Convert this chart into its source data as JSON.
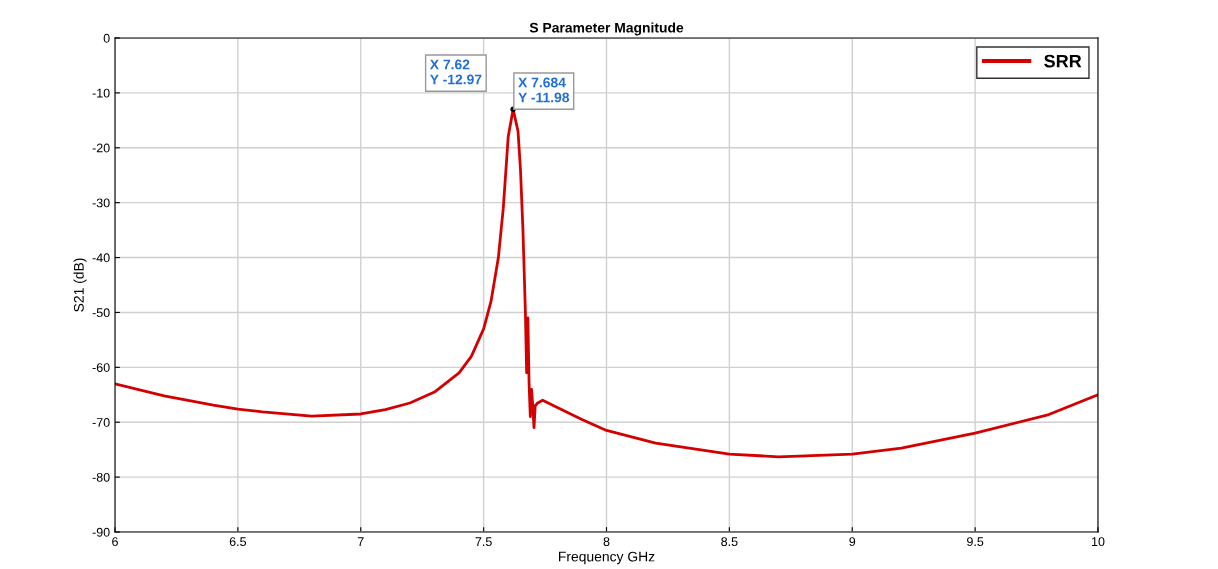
{
  "chart_data": {
    "type": "line",
    "title": "S Parameter Magnitude",
    "xlabel": "Frequency GHz",
    "ylabel": "S21 (dB)",
    "xlim": [
      6,
      10
    ],
    "xticks": [
      6,
      6.5,
      7,
      7.5,
      8,
      8.5,
      9,
      9.5,
      10
    ],
    "ylim": [
      -90,
      0
    ],
    "yticks": [
      -90,
      -80,
      -70,
      -60,
      -50,
      -40,
      -30,
      -20,
      -10,
      0
    ],
    "grid": true,
    "legend": "top right",
    "annotations": [
      {
        "text": "X 7.62\nY -12.97",
        "x": 7.62,
        "y": -12.97
      },
      "X 7.684\nY -11.98"
    ],
    "series": [
      {
        "name": "SRR",
        "color": "#d40000",
        "x": [
          6,
          6.2,
          6.4,
          6.5,
          6.6,
          6.8,
          7,
          7.1,
          7.2,
          7.3,
          7.4,
          7.45,
          7.5,
          7.53,
          7.56,
          7.58,
          7.6,
          7.62,
          7.64,
          7.65,
          7.66,
          7.67,
          7.675,
          7.68,
          7.685,
          7.69,
          7.695,
          7.7,
          7.705,
          7.71,
          7.72,
          7.74,
          7.8,
          7.9,
          8,
          8.2,
          8.5,
          8.7,
          9,
          9.2,
          9.5,
          9.8,
          10
        ],
        "values": [
          -63,
          -65.2,
          -66.9,
          -67.6,
          -68.1,
          -68.9,
          -68.5,
          -67.7,
          -66.5,
          -64.5,
          -61,
          -58,
          -53,
          -48,
          -40,
          -31,
          -18,
          -12.97,
          -17,
          -24,
          -35,
          -50,
          -61,
          -51,
          -63,
          -69,
          -64,
          -67,
          -71,
          -67,
          -66.5,
          -66,
          -67.3,
          -69.5,
          -71.5,
          -73.8,
          -75.8,
          -76.3,
          -75.8,
          -74.7,
          -72,
          -68.6,
          -65
        ]
      }
    ]
  }
}
